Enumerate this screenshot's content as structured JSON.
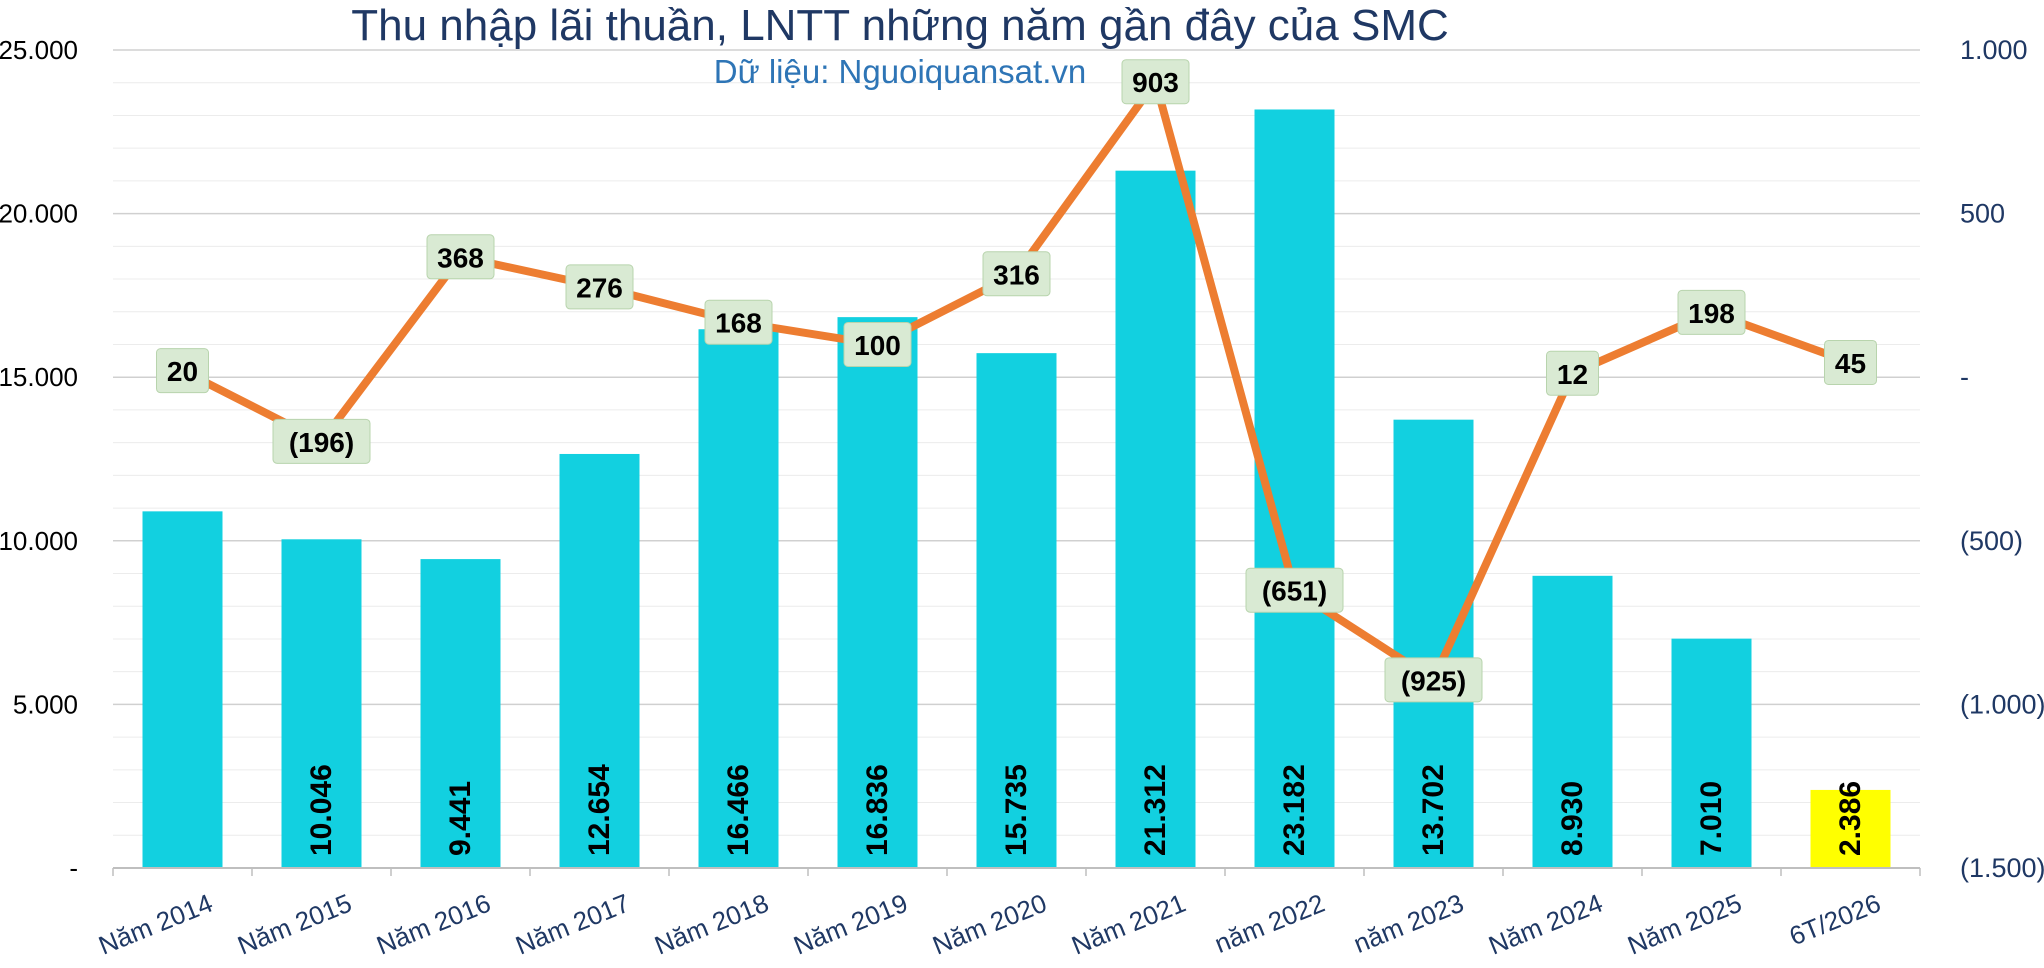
{
  "chart_data": {
    "type": "bar+line",
    "title": "Thu nhập lãi thuần, LNTT những năm gần đây của SMC",
    "subtitle": "Dữ liệu: Nguoiquansat.vn",
    "categories": [
      "Năm 2014",
      "Năm 2015",
      "Năm 2016",
      "Năm 2017",
      "Năm 2018",
      "Năm 2019",
      "Năm 2020",
      "Năm 2021",
      "năm 2022",
      "năm 2023",
      "Năm 2024",
      "Năm 2025",
      "6T/2026"
    ],
    "bar_series": {
      "values": [
        10900,
        10046,
        9441,
        12654,
        16466,
        16836,
        15735,
        21312,
        23182,
        13702,
        8930,
        7010,
        2386
      ],
      "labels": [
        "",
        "10.046",
        "9.441",
        "12.654",
        "16.466",
        "16.836",
        "15.735",
        "21.312",
        "23.182",
        "13.702",
        "8.930",
        "7.010",
        "2.386"
      ],
      "color": "#12d0e0",
      "highlight_color": "#ffff00",
      "highlight_index": 12
    },
    "line_series": {
      "values": [
        20,
        -196,
        368,
        276,
        168,
        100,
        316,
        903,
        -651,
        -925,
        12,
        198,
        45
      ],
      "labels": [
        "20",
        "(196)",
        "368",
        "276",
        "168",
        "100",
        "316",
        "903",
        "(651)",
        "(925)",
        "12",
        "198",
        "45"
      ],
      "color": "#ed7d31"
    },
    "y_left": {
      "ylim": [
        0,
        25000
      ],
      "ticks": [
        "-",
        "5.000",
        "10.000",
        "15.000",
        "20.000",
        "25.000"
      ]
    },
    "y_right": {
      "ylim": [
        -1500,
        1000
      ],
      "ticks": [
        "(1.500)",
        "(1.000)",
        "(500)",
        "-",
        "500",
        "1.000"
      ]
    },
    "grid": true
  },
  "colors": {
    "title": "#1f3864",
    "subtitle": "#2e75b6",
    "axis_text": "#1f3864",
    "label_box": "#d9ead3"
  }
}
